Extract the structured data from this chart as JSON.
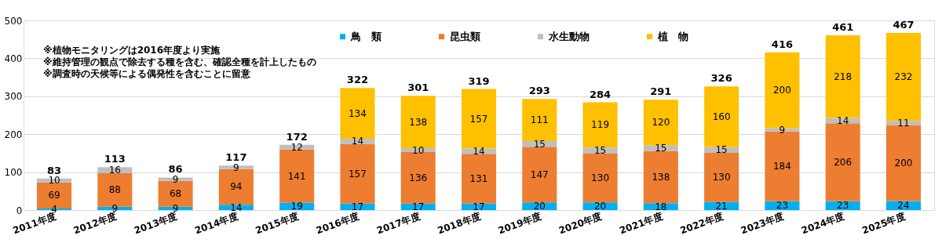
{
  "chart_data": {
    "type": "bar",
    "stacked": true,
    "categories": [
      "2011年度",
      "2012年度",
      "2013年度",
      "2014年度",
      "2015年度",
      "2016年度",
      "2017年度",
      "2018年度",
      "2019年度",
      "2020年度",
      "2021年度",
      "2022年度",
      "2023年度",
      "2024年度",
      "2025年度"
    ],
    "series": [
      {
        "name": "鳥　類",
        "color": "#00b0f0",
        "values": [
          4,
          9,
          9,
          14,
          19,
          17,
          17,
          17,
          20,
          20,
          18,
          21,
          23,
          23,
          24
        ]
      },
      {
        "name": "昆虫類",
        "color": "#ed7d31",
        "values": [
          69,
          88,
          68,
          94,
          141,
          157,
          136,
          131,
          147,
          130,
          138,
          130,
          184,
          206,
          200
        ]
      },
      {
        "name": "水生動物",
        "color": "#bfbfbf",
        "values": [
          10,
          16,
          9,
          9,
          12,
          14,
          10,
          14,
          15,
          15,
          15,
          15,
          9,
          14,
          11
        ]
      },
      {
        "name": "植　物",
        "color": "#ffc000",
        "values": [
          null,
          null,
          null,
          null,
          null,
          134,
          138,
          157,
          111,
          119,
          120,
          160,
          200,
          218,
          232
        ]
      }
    ],
    "totals": [
      "83",
      "113",
      "86",
      "117",
      "172",
      "322",
      "301",
      "319",
      "293",
      "284",
      "291",
      "326",
      "416",
      "461",
      "467"
    ],
    "ylim": [
      0,
      500
    ],
    "yticks": [
      0,
      100,
      200,
      300,
      400,
      500
    ],
    "grid": "y",
    "legend": "top",
    "data_labels": true,
    "annotations": [
      "※植物モニタリングは2016年度より実施",
      "※維持管理の観点で除去する種を含む、確認全種を計上したもの",
      "※調査時の天候等による偶発性を含むことに留意"
    ]
  }
}
